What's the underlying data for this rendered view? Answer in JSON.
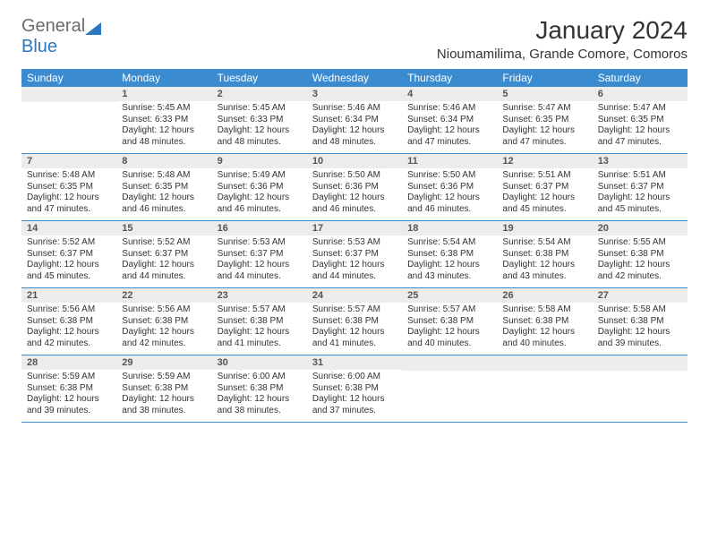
{
  "logo": {
    "word1": "General",
    "word2": "Blue"
  },
  "title": "January 2024",
  "location": "Nioumamilima, Grande Comore, Comoros",
  "columns": [
    "Sunday",
    "Monday",
    "Tuesday",
    "Wednesday",
    "Thursday",
    "Friday",
    "Saturday"
  ],
  "colors": {
    "header_bg": "#3b8bd0",
    "header_text": "#ffffff",
    "daynum_bg": "#ececec",
    "rule": "#3b8bd0",
    "logo_gray": "#6b6b6b",
    "logo_blue": "#2b77c0"
  },
  "typography": {
    "title_fontsize": 28,
    "location_fontsize": 15,
    "dayheader_fontsize": 12,
    "daynum_fontsize": 11,
    "info_fontsize": 10
  },
  "weeks": [
    [
      {
        "n": "",
        "sunrise": "",
        "sunset": "",
        "daylight": ""
      },
      {
        "n": "1",
        "sunrise": "5:45 AM",
        "sunset": "6:33 PM",
        "daylight": "12 hours and 48 minutes."
      },
      {
        "n": "2",
        "sunrise": "5:45 AM",
        "sunset": "6:33 PM",
        "daylight": "12 hours and 48 minutes."
      },
      {
        "n": "3",
        "sunrise": "5:46 AM",
        "sunset": "6:34 PM",
        "daylight": "12 hours and 48 minutes."
      },
      {
        "n": "4",
        "sunrise": "5:46 AM",
        "sunset": "6:34 PM",
        "daylight": "12 hours and 47 minutes."
      },
      {
        "n": "5",
        "sunrise": "5:47 AM",
        "sunset": "6:35 PM",
        "daylight": "12 hours and 47 minutes."
      },
      {
        "n": "6",
        "sunrise": "5:47 AM",
        "sunset": "6:35 PM",
        "daylight": "12 hours and 47 minutes."
      }
    ],
    [
      {
        "n": "7",
        "sunrise": "5:48 AM",
        "sunset": "6:35 PM",
        "daylight": "12 hours and 47 minutes."
      },
      {
        "n": "8",
        "sunrise": "5:48 AM",
        "sunset": "6:35 PM",
        "daylight": "12 hours and 46 minutes."
      },
      {
        "n": "9",
        "sunrise": "5:49 AM",
        "sunset": "6:36 PM",
        "daylight": "12 hours and 46 minutes."
      },
      {
        "n": "10",
        "sunrise": "5:50 AM",
        "sunset": "6:36 PM",
        "daylight": "12 hours and 46 minutes."
      },
      {
        "n": "11",
        "sunrise": "5:50 AM",
        "sunset": "6:36 PM",
        "daylight": "12 hours and 46 minutes."
      },
      {
        "n": "12",
        "sunrise": "5:51 AM",
        "sunset": "6:37 PM",
        "daylight": "12 hours and 45 minutes."
      },
      {
        "n": "13",
        "sunrise": "5:51 AM",
        "sunset": "6:37 PM",
        "daylight": "12 hours and 45 minutes."
      }
    ],
    [
      {
        "n": "14",
        "sunrise": "5:52 AM",
        "sunset": "6:37 PM",
        "daylight": "12 hours and 45 minutes."
      },
      {
        "n": "15",
        "sunrise": "5:52 AM",
        "sunset": "6:37 PM",
        "daylight": "12 hours and 44 minutes."
      },
      {
        "n": "16",
        "sunrise": "5:53 AM",
        "sunset": "6:37 PM",
        "daylight": "12 hours and 44 minutes."
      },
      {
        "n": "17",
        "sunrise": "5:53 AM",
        "sunset": "6:37 PM",
        "daylight": "12 hours and 44 minutes."
      },
      {
        "n": "18",
        "sunrise": "5:54 AM",
        "sunset": "6:38 PM",
        "daylight": "12 hours and 43 minutes."
      },
      {
        "n": "19",
        "sunrise": "5:54 AM",
        "sunset": "6:38 PM",
        "daylight": "12 hours and 43 minutes."
      },
      {
        "n": "20",
        "sunrise": "5:55 AM",
        "sunset": "6:38 PM",
        "daylight": "12 hours and 42 minutes."
      }
    ],
    [
      {
        "n": "21",
        "sunrise": "5:56 AM",
        "sunset": "6:38 PM",
        "daylight": "12 hours and 42 minutes."
      },
      {
        "n": "22",
        "sunrise": "5:56 AM",
        "sunset": "6:38 PM",
        "daylight": "12 hours and 42 minutes."
      },
      {
        "n": "23",
        "sunrise": "5:57 AM",
        "sunset": "6:38 PM",
        "daylight": "12 hours and 41 minutes."
      },
      {
        "n": "24",
        "sunrise": "5:57 AM",
        "sunset": "6:38 PM",
        "daylight": "12 hours and 41 minutes."
      },
      {
        "n": "25",
        "sunrise": "5:57 AM",
        "sunset": "6:38 PM",
        "daylight": "12 hours and 40 minutes."
      },
      {
        "n": "26",
        "sunrise": "5:58 AM",
        "sunset": "6:38 PM",
        "daylight": "12 hours and 40 minutes."
      },
      {
        "n": "27",
        "sunrise": "5:58 AM",
        "sunset": "6:38 PM",
        "daylight": "12 hours and 39 minutes."
      }
    ],
    [
      {
        "n": "28",
        "sunrise": "5:59 AM",
        "sunset": "6:38 PM",
        "daylight": "12 hours and 39 minutes."
      },
      {
        "n": "29",
        "sunrise": "5:59 AM",
        "sunset": "6:38 PM",
        "daylight": "12 hours and 38 minutes."
      },
      {
        "n": "30",
        "sunrise": "6:00 AM",
        "sunset": "6:38 PM",
        "daylight": "12 hours and 38 minutes."
      },
      {
        "n": "31",
        "sunrise": "6:00 AM",
        "sunset": "6:38 PM",
        "daylight": "12 hours and 37 minutes."
      },
      {
        "n": "",
        "sunrise": "",
        "sunset": "",
        "daylight": ""
      },
      {
        "n": "",
        "sunrise": "",
        "sunset": "",
        "daylight": ""
      },
      {
        "n": "",
        "sunrise": "",
        "sunset": "",
        "daylight": ""
      }
    ]
  ],
  "labels": {
    "sunrise": "Sunrise:",
    "sunset": "Sunset:",
    "daylight": "Daylight:"
  }
}
